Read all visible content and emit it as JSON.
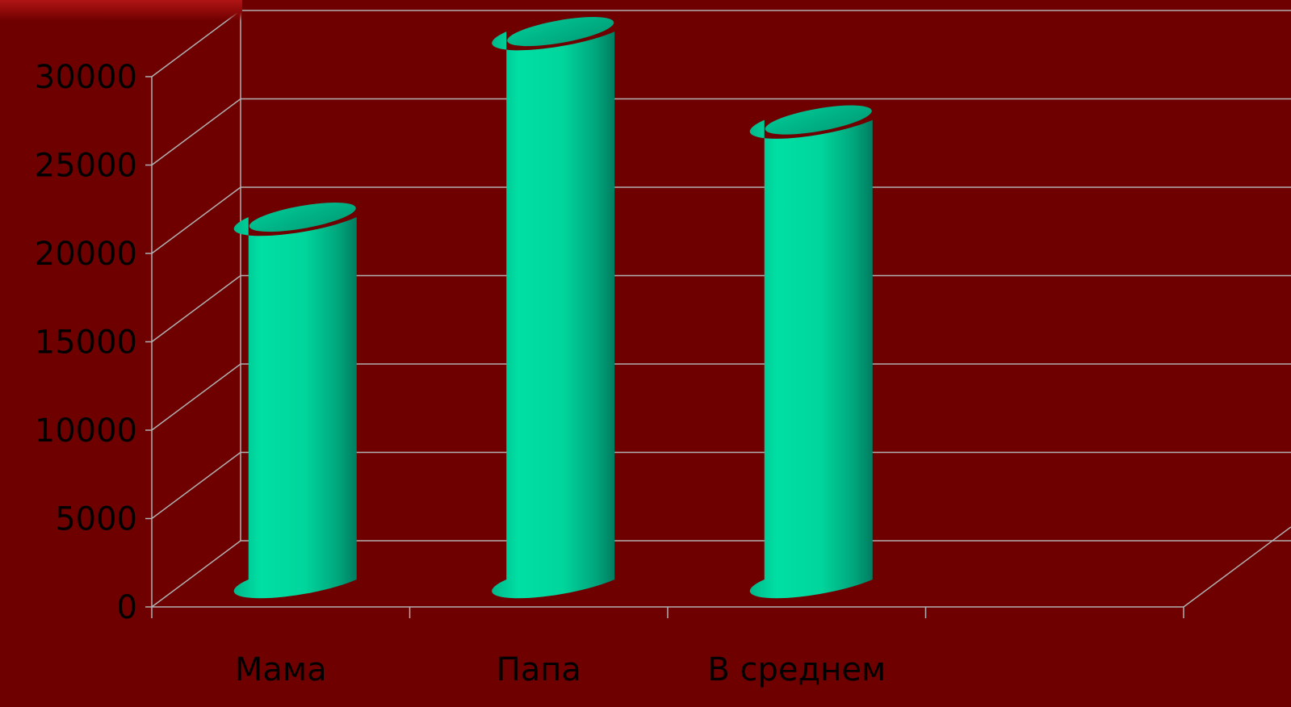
{
  "chart_data": {
    "type": "bar",
    "style": "3d-cylinder",
    "categories": [
      "Мама",
      "Папа",
      "В среднем"
    ],
    "values": [
      20500,
      31000,
      26000
    ],
    "ylim": [
      0,
      30000
    ],
    "yticks": [
      "0",
      "5000",
      "10000",
      "15000",
      "20000",
      "25000",
      "30000"
    ],
    "grid": true,
    "title": "",
    "xlabel": "",
    "ylabel": "",
    "colors": {
      "background": "#6e0000",
      "bar": "#00d9a0",
      "bar_dark": "#00876a",
      "bar_top": "#00b889",
      "grid": "#b0b0b0",
      "text": "#000000"
    }
  }
}
